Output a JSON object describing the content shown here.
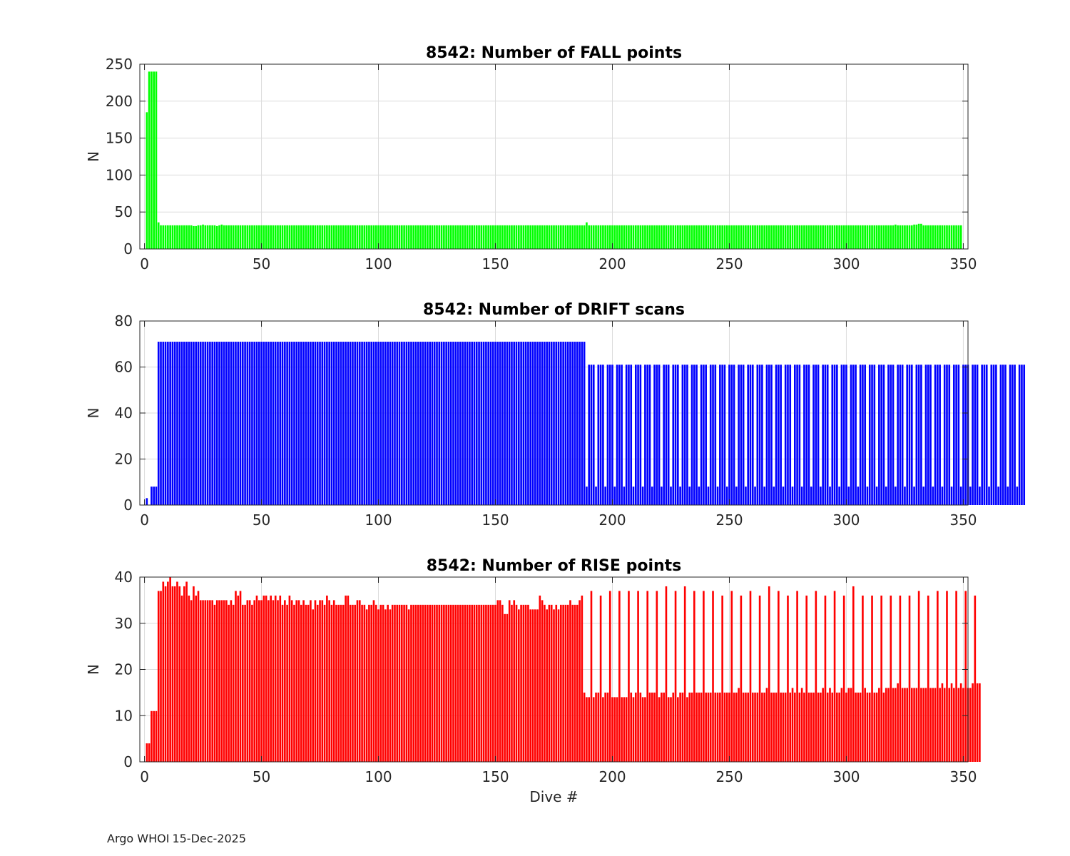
{
  "chart_data": [
    {
      "type": "bar",
      "title": "8542: Number of FALL points",
      "xlabel": "",
      "ylabel": "N",
      "xlim": [
        -2,
        352
      ],
      "ylim": [
        0,
        250
      ],
      "xticks": [
        0,
        50,
        100,
        150,
        200,
        250,
        300,
        350
      ],
      "yticks": [
        0,
        50,
        100,
        150,
        200,
        250
      ],
      "color": "#00ff00",
      "x_start": 1,
      "values": [
        185,
        240,
        240,
        240,
        240,
        36,
        32,
        32,
        32,
        32,
        32,
        32,
        32,
        32,
        32,
        32,
        32,
        32,
        32,
        32,
        31,
        31,
        32,
        32,
        33,
        32,
        32,
        32,
        32,
        32,
        31,
        32,
        33,
        32,
        32,
        32,
        32,
        32,
        32,
        32,
        32,
        32,
        32,
        32,
        32,
        32,
        32,
        32,
        32,
        32,
        32,
        32,
        32,
        32,
        32,
        32,
        32,
        32,
        32,
        32,
        32,
        32,
        32,
        32,
        32,
        32,
        32,
        32,
        32,
        32,
        32,
        32,
        32,
        32,
        32,
        32,
        32,
        32,
        32,
        32,
        32,
        32,
        32,
        32,
        32,
        32,
        32,
        32,
        32,
        32,
        32,
        32,
        32,
        32,
        32,
        32,
        32,
        32,
        32,
        32,
        32,
        32,
        32,
        32,
        32,
        32,
        32,
        32,
        32,
        32,
        32,
        32,
        32,
        32,
        32,
        32,
        32,
        32,
        32,
        32,
        32,
        32,
        32,
        32,
        32,
        32,
        32,
        32,
        32,
        32,
        32,
        32,
        32,
        32,
        32,
        32,
        32,
        32,
        32,
        32,
        32,
        32,
        32,
        32,
        32,
        32,
        32,
        32,
        32,
        32,
        32,
        32,
        32,
        32,
        32,
        32,
        32,
        32,
        32,
        32,
        32,
        32,
        32,
        32,
        32,
        32,
        32,
        32,
        32,
        32,
        32,
        32,
        32,
        32,
        32,
        32,
        32,
        32,
        32,
        32,
        32,
        32,
        32,
        32,
        32,
        32,
        32,
        32,
        36,
        32,
        32,
        32,
        32,
        32,
        32,
        32,
        32,
        32,
        32,
        32,
        32,
        32,
        32,
        32,
        32,
        32,
        32,
        32,
        32,
        32,
        32,
        32,
        32,
        32,
        32,
        32,
        32,
        32,
        32,
        32,
        32,
        32,
        32,
        32,
        32,
        32,
        32,
        32,
        32,
        32,
        32,
        32,
        32,
        32,
        32,
        32,
        32,
        32,
        32,
        32,
        32,
        32,
        32,
        32,
        32,
        32,
        32,
        32,
        32,
        32,
        32,
        32,
        32,
        32,
        32,
        32,
        32,
        32,
        32,
        32,
        32,
        32,
        32,
        32,
        32,
        32,
        32,
        32,
        32,
        32,
        32,
        32,
        32,
        32,
        32,
        32,
        32,
        32,
        32,
        32,
        32,
        32,
        32,
        32,
        32,
        32,
        32,
        32,
        32,
        32,
        32,
        32,
        32,
        32,
        32,
        32,
        32,
        32,
        32,
        32,
        32,
        32,
        32,
        32,
        32,
        32,
        32,
        32,
        32,
        32,
        32,
        32,
        32,
        32,
        32,
        32,
        32,
        32,
        32,
        32,
        33,
        32,
        32,
        32,
        32,
        32,
        32,
        32,
        33,
        33,
        34,
        34,
        32,
        32,
        32,
        32,
        32,
        32,
        32,
        32,
        32,
        32,
        32,
        32,
        32,
        32,
        32,
        32,
        32
      ]
    },
    {
      "type": "bar",
      "title": "8542: Number of DRIFT scans",
      "xlabel": "",
      "ylabel": "N",
      "xlim": [
        -2,
        352
      ],
      "ylim": [
        0,
        80
      ],
      "xticks": [
        0,
        50,
        100,
        150,
        200,
        250,
        300,
        350
      ],
      "yticks": [
        0,
        20,
        40,
        60,
        80
      ],
      "color": "#0000ff",
      "x_start": 1,
      "values": [
        3,
        0,
        8,
        8,
        8,
        71,
        71,
        71,
        71,
        71,
        71,
        71,
        71,
        71,
        71,
        71,
        71,
        71,
        71,
        71,
        71,
        71,
        71,
        71,
        71,
        71,
        71,
        71,
        71,
        71,
        71,
        71,
        71,
        71,
        71,
        71,
        71,
        71,
        71,
        71,
        71,
        71,
        71,
        71,
        71,
        71,
        71,
        71,
        71,
        71,
        71,
        71,
        71,
        71,
        71,
        71,
        71,
        71,
        71,
        71,
        71,
        71,
        71,
        71,
        71,
        71,
        71,
        71,
        71,
        71,
        71,
        71,
        71,
        71,
        71,
        71,
        71,
        71,
        71,
        71,
        71,
        71,
        71,
        71,
        71,
        71,
        71,
        71,
        71,
        71,
        71,
        71,
        71,
        71,
        71,
        71,
        71,
        71,
        71,
        71,
        71,
        71,
        71,
        71,
        71,
        71,
        71,
        71,
        71,
        71,
        71,
        71,
        71,
        71,
        71,
        71,
        71,
        71,
        71,
        71,
        71,
        71,
        71,
        71,
        71,
        71,
        71,
        71,
        71,
        71,
        71,
        71,
        71,
        71,
        71,
        71,
        71,
        71,
        71,
        71,
        71,
        71,
        71,
        71,
        71,
        71,
        71,
        71,
        71,
        71,
        71,
        71,
        71,
        71,
        71,
        71,
        71,
        71,
        71,
        71,
        71,
        71,
        71,
        71,
        71,
        71,
        71,
        71,
        71,
        71,
        71,
        71,
        71,
        71,
        71,
        71,
        71,
        71,
        71,
        71,
        71,
        71,
        71,
        71,
        71,
        71,
        71,
        71,
        8,
        61,
        61,
        61,
        8,
        61,
        61,
        61,
        8,
        61,
        61,
        61,
        8,
        61,
        61,
        61,
        8,
        61,
        61,
        61,
        8,
        61,
        61,
        61,
        8,
        61,
        61,
        61,
        8,
        61,
        61,
        61,
        8,
        61,
        61,
        61,
        8,
        61,
        61,
        61,
        8,
        61,
        61,
        61,
        8,
        61,
        61,
        61,
        8,
        61,
        61,
        61,
        8,
        61,
        61,
        61,
        8,
        61,
        61,
        61,
        8,
        61,
        61,
        61,
        8,
        61,
        61,
        61,
        8,
        61,
        61,
        61,
        8,
        61,
        61,
        61,
        8,
        61,
        61,
        61,
        8,
        61,
        61,
        61,
        8,
        61,
        61,
        61,
        8,
        61,
        61,
        61,
        8,
        61,
        61,
        61,
        8,
        61,
        61,
        61,
        8,
        61,
        61,
        61,
        8,
        61,
        61,
        61,
        8,
        61,
        61,
        61,
        8,
        61,
        61,
        61,
        8,
        61,
        61,
        61,
        8,
        61,
        61,
        61,
        8,
        61,
        61,
        61,
        8,
        61,
        61,
        61,
        8,
        61,
        61,
        61,
        8,
        61,
        61,
        61,
        8,
        61,
        61,
        61,
        8,
        61,
        61,
        61,
        8,
        61,
        61,
        61,
        8,
        61,
        61,
        61,
        8,
        61,
        61,
        61,
        8,
        61,
        61,
        61,
        8,
        61,
        61,
        61,
        8,
        61,
        61,
        61,
        8,
        61,
        61,
        61,
        8,
        61,
        61,
        61,
        8,
        61,
        61,
        61,
        8,
        61,
        61,
        61
      ]
    },
    {
      "type": "bar",
      "title": "8542: Number of RISE points",
      "xlabel": "Dive #",
      "ylabel": "N",
      "xlim": [
        -2,
        352
      ],
      "ylim": [
        0,
        40
      ],
      "xticks": [
        0,
        50,
        100,
        150,
        200,
        250,
        300,
        350
      ],
      "yticks": [
        0,
        10,
        20,
        30,
        40
      ],
      "color": "#ff0000",
      "x_start": 1,
      "values": [
        4,
        4,
        11,
        11,
        11,
        37,
        37,
        39,
        38,
        39,
        40,
        38,
        38,
        39,
        38,
        36,
        38,
        39,
        36,
        35,
        38,
        36,
        37,
        35,
        35,
        35,
        35,
        35,
        35,
        34,
        35,
        35,
        35,
        35,
        35,
        34,
        35,
        34,
        37,
        36,
        37,
        34,
        34,
        35,
        35,
        34,
        35,
        36,
        35,
        35,
        36,
        36,
        35,
        36,
        35,
        36,
        35,
        36,
        34,
        35,
        34,
        36,
        35,
        34,
        35,
        35,
        34,
        35,
        34,
        34,
        35,
        33,
        35,
        34,
        35,
        35,
        34,
        36,
        35,
        34,
        35,
        34,
        34,
        34,
        34,
        36,
        36,
        34,
        34,
        34,
        35,
        35,
        34,
        34,
        33,
        34,
        34,
        35,
        34,
        33,
        34,
        34,
        33,
        34,
        33,
        34,
        34,
        34,
        34,
        34,
        34,
        34,
        33,
        34,
        34,
        34,
        34,
        34,
        34,
        34,
        34,
        34,
        34,
        34,
        34,
        34,
        34,
        34,
        34,
        34,
        34,
        34,
        34,
        34,
        34,
        34,
        34,
        34,
        34,
        34,
        34,
        34,
        34,
        34,
        34,
        34,
        34,
        34,
        34,
        34,
        35,
        35,
        34,
        32,
        32,
        35,
        34,
        35,
        34,
        33,
        34,
        34,
        34,
        34,
        33,
        33,
        33,
        33,
        36,
        35,
        34,
        33,
        34,
        34,
        33,
        34,
        33,
        34,
        34,
        34,
        34,
        35,
        34,
        34,
        34,
        35,
        36,
        15,
        14,
        14,
        37,
        14,
        15,
        15,
        36,
        14,
        15,
        15,
        37,
        14,
        14,
        14,
        37,
        14,
        14,
        14,
        37,
        15,
        14,
        15,
        37,
        15,
        14,
        14,
        37,
        15,
        15,
        15,
        37,
        14,
        15,
        15,
        38,
        14,
        14,
        15,
        37,
        14,
        15,
        15,
        38,
        14,
        15,
        15,
        37,
        15,
        15,
        15,
        37,
        15,
        15,
        15,
        37,
        15,
        15,
        15,
        36,
        15,
        15,
        15,
        37,
        15,
        15,
        16,
        36,
        15,
        15,
        15,
        37,
        15,
        15,
        15,
        36,
        15,
        15,
        16,
        38,
        15,
        15,
        15,
        37,
        15,
        15,
        15,
        36,
        15,
        16,
        15,
        37,
        15,
        16,
        15,
        36,
        15,
        15,
        15,
        37,
        15,
        15,
        16,
        36,
        15,
        16,
        15,
        37,
        15,
        15,
        16,
        36,
        15,
        16,
        16,
        38,
        15,
        15,
        15,
        36,
        16,
        15,
        15,
        36,
        15,
        15,
        16,
        36,
        15,
        16,
        16,
        36,
        16,
        16,
        17,
        36,
        16,
        16,
        16,
        36,
        16,
        16,
        16,
        37,
        16,
        16,
        16,
        36,
        16,
        16,
        16,
        37,
        16,
        17,
        16,
        37,
        16,
        17,
        16,
        37,
        16,
        17,
        16,
        37,
        16,
        16,
        17,
        36,
        17,
        17
      ]
    }
  ],
  "footer": {
    "source": "Argo WHOI",
    "date": "15-Dec-2025"
  }
}
